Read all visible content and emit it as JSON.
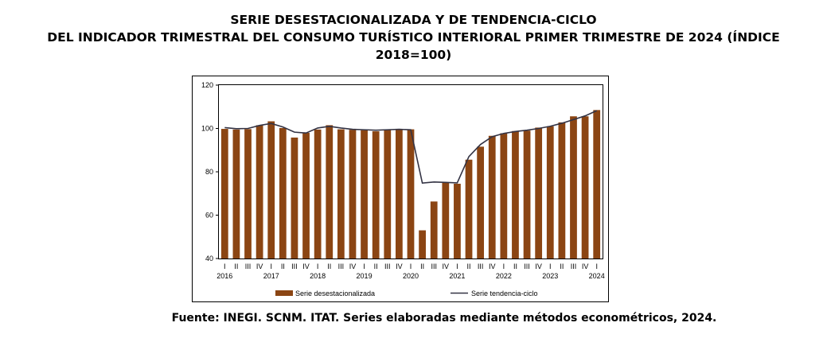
{
  "title": {
    "line1": "SERIE DESESTACIONALIZADA Y DE TENDENCIA-CICLO",
    "line2": "DEL INDICADOR TRIMESTRAL DEL CONSUMO TURÍSTICO INTERIORAL PRIMER TRIMESTRE DE 2024 (ÍNDICE",
    "line3": "2018=100)"
  },
  "source": "Fuente: INEGI. SCNM. ITAT. Series elaboradas mediante métodos econométricos, 2024.",
  "chart_data": {
    "type": "bar",
    "quarters": [
      "I",
      "II",
      "III",
      "IV",
      "I",
      "II",
      "III",
      "IV",
      "I",
      "II",
      "III",
      "IV",
      "I",
      "II",
      "III",
      "IV",
      "I",
      "II",
      "III",
      "IV",
      "I",
      "II",
      "III",
      "IV",
      "I",
      "II",
      "III",
      "IV",
      "I",
      "II",
      "III",
      "IV",
      "I"
    ],
    "years": [
      {
        "label": "2016",
        "start": 0
      },
      {
        "label": "2017",
        "start": 4
      },
      {
        "label": "2018",
        "start": 8
      },
      {
        "label": "2019",
        "start": 12
      },
      {
        "label": "2020",
        "start": 16
      },
      {
        "label": "2021",
        "start": 20
      },
      {
        "label": "2022",
        "start": 24
      },
      {
        "label": "2023",
        "start": 28
      },
      {
        "label": "2024",
        "start": 32
      }
    ],
    "ylim": [
      40,
      120
    ],
    "yticks": [
      40,
      60,
      80,
      100,
      120
    ],
    "series": [
      {
        "name": "Serie desestacionalizada",
        "kind": "bar",
        "color": "#8B4513",
        "values": [
          99.8,
          99.5,
          99.7,
          101.5,
          103.3,
          100.2,
          95.8,
          98.0,
          99.5,
          101.5,
          99.6,
          99.4,
          99.2,
          98.7,
          99.6,
          99.6,
          99.6,
          53.0,
          66.3,
          75.0,
          74.5,
          85.6,
          91.6,
          96.6,
          97.8,
          98.8,
          99.0,
          100.4,
          101.0,
          102.8,
          105.6,
          105.6,
          108.5
        ]
      },
      {
        "name": "Serie tendencia-ciclo",
        "kind": "line",
        "color": "#333344",
        "values": [
          100.4,
          99.9,
          100.0,
          101.4,
          102.3,
          100.7,
          98.3,
          97.9,
          100.2,
          101.0,
          100.2,
          99.6,
          99.4,
          99.2,
          99.4,
          99.6,
          99.4,
          74.8,
          75.3,
          75.1,
          74.9,
          87.0,
          92.6,
          96.2,
          97.7,
          98.6,
          99.2,
          100.0,
          101.0,
          102.4,
          104.1,
          105.8,
          108.2
        ]
      }
    ]
  }
}
